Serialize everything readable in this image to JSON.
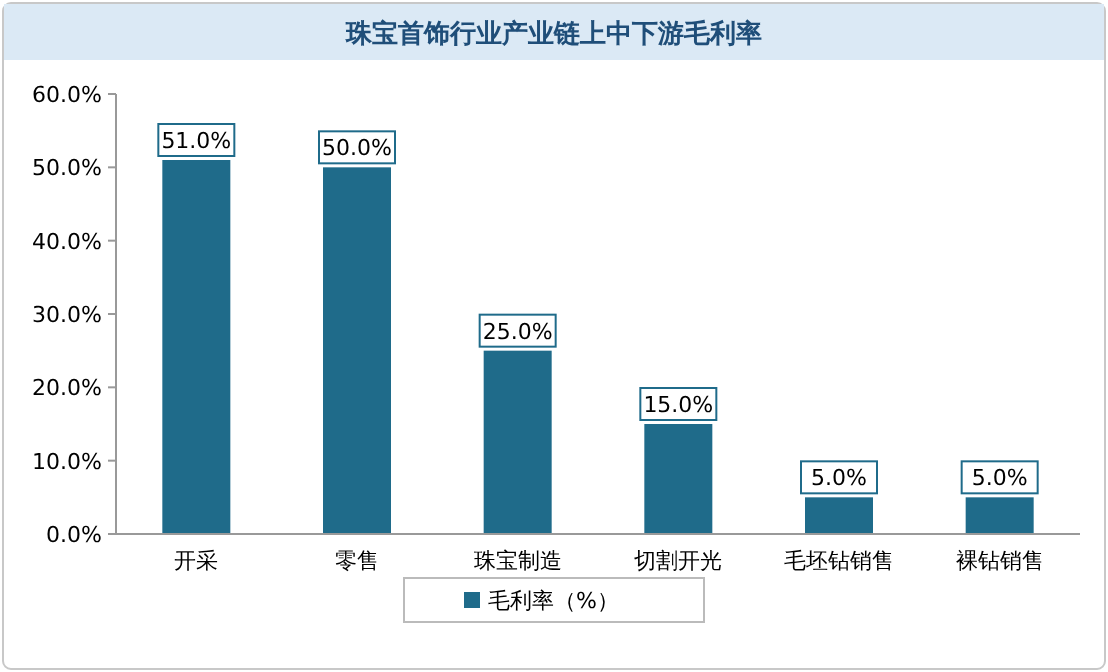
{
  "chart_data": {
    "type": "bar",
    "title": "珠宝首饰行业产业链上中下游毛利率",
    "categories": [
      "开采",
      "零售",
      "珠宝制造",
      "切割开光",
      "毛坯钻销售",
      "裸钻销售"
    ],
    "series": [
      {
        "name": "毛利率（%）",
        "color": "#1f6b8a",
        "values": [
          51,
          50,
          25,
          15,
          5,
          5
        ],
        "value_labels": [
          "51.0%",
          "50.0%",
          "25.0%",
          "15.0%",
          "5.0%",
          "5.0%"
        ]
      }
    ],
    "ylim": [
      0,
      60
    ],
    "yticks": [
      {
        "value": 0,
        "label": "0.0%"
      },
      {
        "value": 10,
        "label": "10.0%"
      },
      {
        "value": 20,
        "label": "20.0%"
      },
      {
        "value": 30,
        "label": "30.0%"
      },
      {
        "value": 40,
        "label": "40.0%"
      },
      {
        "value": 50,
        "label": "50.0%"
      },
      {
        "value": 60,
        "label": "60.0%"
      }
    ],
    "legend": "bottom"
  }
}
